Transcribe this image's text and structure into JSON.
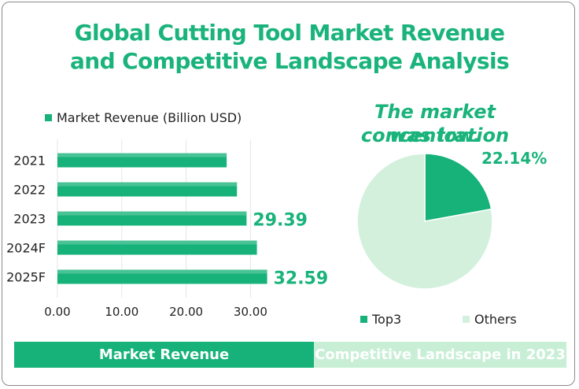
{
  "title_line1": "Global Cutting Tool Market Revenue",
  "title_line2": "and Competitive Landscape Analysis",
  "headline_line1": "The market concentration",
  "headline_line2": "was low.",
  "colors": {
    "accent": "#19b37b",
    "bar": "#16b279",
    "pie_others": "#d3f0dd",
    "bar_right_bg": "#c8efd6"
  },
  "bottom": {
    "left_label": "Market  Revenue",
    "right_label": "Competitive Landscape in 2023"
  },
  "chart_data": [
    {
      "type": "bar",
      "orientation": "horizontal",
      "series": [
        {
          "name": "Market Revenue (Billion USD)",
          "values": [
            26.3,
            27.9,
            29.39,
            31.0,
            32.59
          ]
        }
      ],
      "categories": [
        "2021",
        "2022",
        "2023",
        "2024F",
        "2025F"
      ],
      "data_labels": {
        "2023": "29.39",
        "2025F": "32.59"
      },
      "xticks": [
        "0.00",
        "10.00",
        "20.00",
        "30.00"
      ],
      "xlim": [
        0,
        40
      ],
      "grid": true,
      "legend": "top"
    },
    {
      "type": "pie",
      "slices": [
        {
          "name": "Top3",
          "value": 22.14,
          "label": "22.14%"
        },
        {
          "name": "Others",
          "value": 77.86
        }
      ],
      "legend": "bottom"
    }
  ]
}
